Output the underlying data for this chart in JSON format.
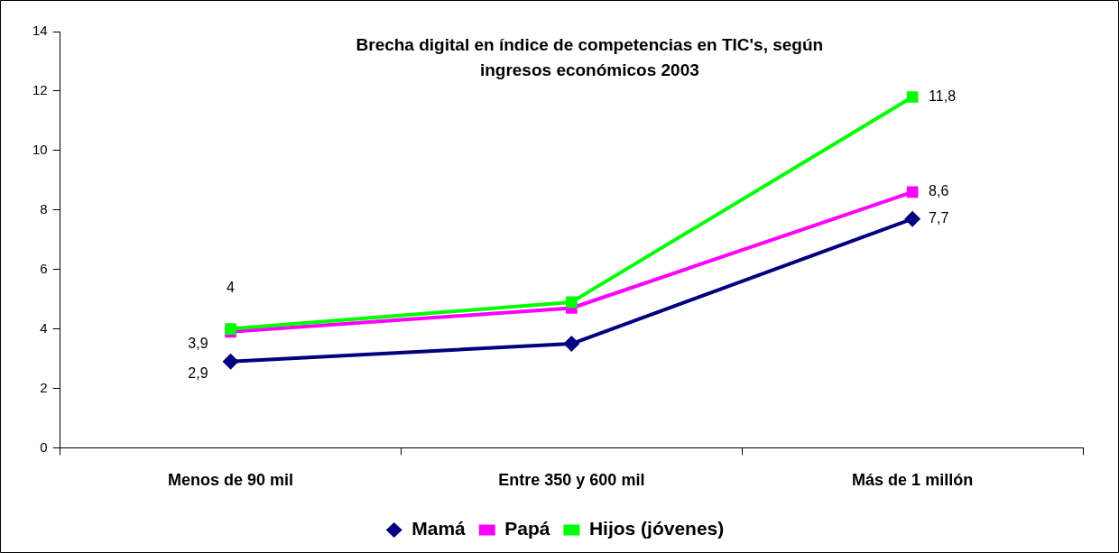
{
  "chart_data": {
    "type": "line",
    "title": "Brecha digital en índice de competencias en TIC's, según ingresos económicos 2003",
    "categories": [
      "Menos de 90 mil",
      "Entre 350 y 600 mil",
      "Más de 1 millón"
    ],
    "series": [
      {
        "name": "Mamá",
        "color": "#000080",
        "marker": "diamond",
        "values": [
          2.9,
          3.5,
          7.7
        ],
        "value_labels": [
          "2,9",
          null,
          "7,7"
        ]
      },
      {
        "name": "Papá",
        "color": "#ff00ff",
        "marker": "square",
        "values": [
          3.9,
          4.7,
          8.6
        ],
        "value_labels": [
          "3,9",
          null,
          "8,6"
        ]
      },
      {
        "name": "Hijos (jóvenes)",
        "color": "#00ff00",
        "marker": "square",
        "values": [
          4,
          4.9,
          11.8
        ],
        "value_labels": [
          "4",
          null,
          "11,8"
        ]
      }
    ],
    "ylim": [
      0,
      14
    ],
    "yticks": [
      0,
      2,
      4,
      6,
      8,
      10,
      12,
      14
    ],
    "grid": false,
    "legend": "bottom",
    "line_style": "solid"
  }
}
